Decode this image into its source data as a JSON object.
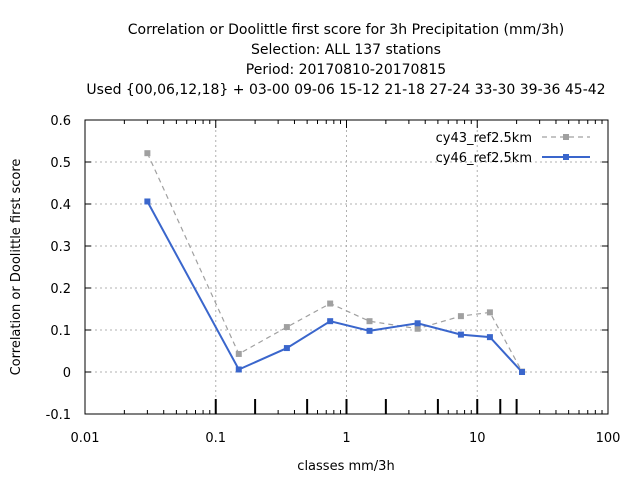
{
  "chart_data": {
    "type": "line",
    "title_lines": [
      "Correlation or Doolittle first score  for 3h Precipitation (mm/3h)",
      "Selection: ALL     137 stations",
      "Period: 20170810-20170815",
      "Used {00,06,12,18} + 03-00 09-06 15-12 21-18 27-24 33-30 39-36 45-42"
    ],
    "xlabel": "classes mm/3h",
    "ylabel": "Correlation or Doolittle first score",
    "xscale": "log",
    "xlim": [
      0.01,
      100
    ],
    "ylim": [
      -0.1,
      0.6
    ],
    "xticks": [
      0.01,
      0.1,
      1,
      10,
      100
    ],
    "xtick_labels": [
      "0.01",
      "0.1",
      "1",
      "10",
      "100"
    ],
    "yticks": [
      -0.1,
      0,
      0.1,
      0.2,
      0.3,
      0.4,
      0.5,
      0.6
    ],
    "ytick_labels": [
      "-0.1",
      "0",
      "0.1",
      "0.2",
      "0.3",
      "0.4",
      "0.5",
      "0.6"
    ],
    "class_limits": [
      0.1,
      0.2,
      0.5,
      1,
      2,
      5,
      10,
      15,
      20
    ],
    "grid": true,
    "legend_position": "top-right",
    "series": [
      {
        "name": "cy43_ref2.5km",
        "color": "#a0a0a0",
        "dash": true,
        "x": [
          0.03,
          0.15,
          0.35,
          0.75,
          1.5,
          3.5,
          7.5,
          12.5,
          22
        ],
        "y": [
          0.521,
          0.043,
          0.107,
          0.163,
          0.121,
          0.103,
          0.133,
          0.142,
          0.001
        ]
      },
      {
        "name": "cy46_ref2.5km",
        "color": "#3a66cc",
        "dash": false,
        "x": [
          0.03,
          0.15,
          0.35,
          0.75,
          1.5,
          3.5,
          7.5,
          12.5,
          22
        ],
        "y": [
          0.406,
          0.006,
          0.057,
          0.121,
          0.098,
          0.116,
          0.089,
          0.083,
          0.0
        ]
      }
    ]
  }
}
